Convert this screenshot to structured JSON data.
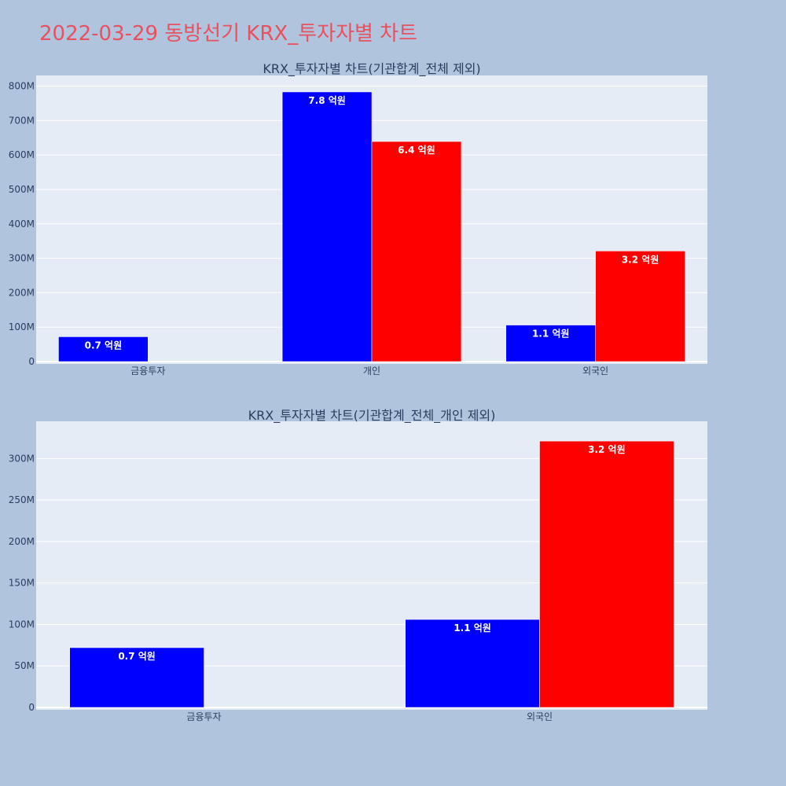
{
  "title": "2022-03-29 동방선기 KRX_투자자별 차트",
  "colors": {
    "background": "#b0c4de",
    "plot_bg": "#e5ecf6",
    "title": "#e8515f",
    "series_a": "#0000ff",
    "series_b": "#ff0000",
    "text": "#2a3f5f"
  },
  "chart_data": [
    {
      "type": "bar",
      "title": "KRX_투자자별 차트(기관합계_전체 제외)",
      "categories": [
        "금융투자",
        "개인",
        "외국인"
      ],
      "series": [
        {
          "color": "#0000ff",
          "values": [
            72000000,
            783000000,
            106000000
          ],
          "labels": [
            "0.7 억원",
            "7.8 억원",
            "1.1 억원"
          ]
        },
        {
          "color": "#ff0000",
          "values": [
            0,
            639000000,
            321000000
          ],
          "labels": [
            "",
            "6.4 억원",
            "3.2 억원"
          ]
        }
      ],
      "yticks": [
        0,
        100000000,
        200000000,
        300000000,
        400000000,
        500000000,
        600000000,
        700000000,
        800000000
      ],
      "ytick_labels": [
        "0",
        "100M",
        "200M",
        "300M",
        "400M",
        "500M",
        "600M",
        "700M",
        "800M"
      ],
      "ylim": [
        0,
        824000000
      ],
      "grid": true,
      "legend": "none"
    },
    {
      "type": "bar",
      "title": "KRX_투자자별 차트(기관합계_전체_개인 제외)",
      "categories": [
        "금융투자",
        "외국인"
      ],
      "series": [
        {
          "color": "#0000ff",
          "values": [
            72000000,
            106000000
          ],
          "labels": [
            "0.7 억원",
            "1.1 억원"
          ]
        },
        {
          "color": "#ff0000",
          "values": [
            0,
            321000000
          ],
          "labels": [
            "",
            "3.2 억원"
          ]
        }
      ],
      "yticks": [
        0,
        50000000,
        100000000,
        150000000,
        200000000,
        250000000,
        300000000
      ],
      "ytick_labels": [
        "0",
        "50M",
        "100M",
        "150M",
        "200M",
        "250M",
        "300M"
      ],
      "ylim": [
        0,
        342000000
      ],
      "grid": true,
      "legend": "none"
    }
  ]
}
